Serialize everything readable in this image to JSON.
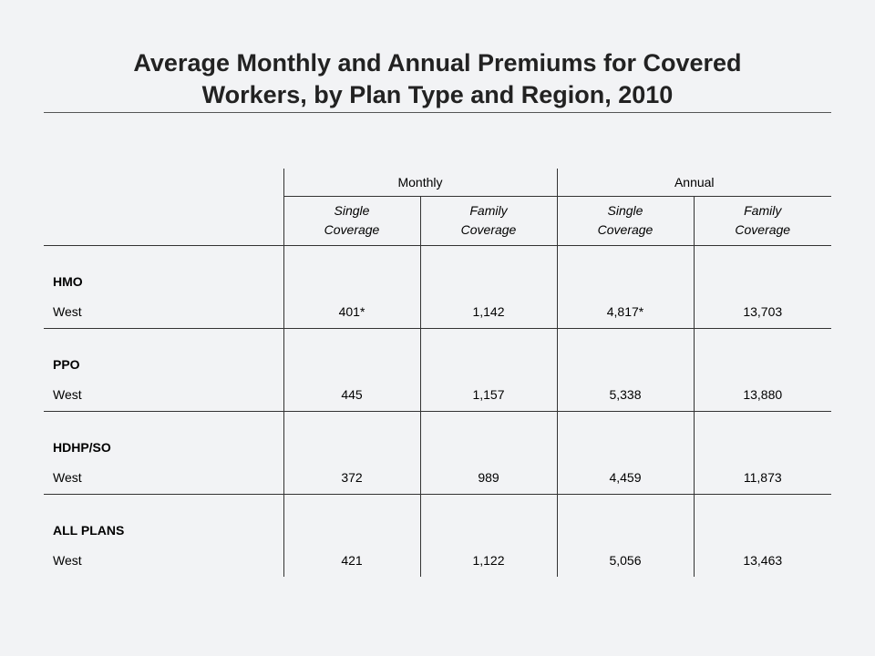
{
  "title_line1": "Average Monthly and Annual Premiums for Covered",
  "title_line2": "Workers, by Plan Type and Region, 2010",
  "chart_data": {
    "type": "table",
    "column_groups": [
      "Monthly",
      "Annual"
    ],
    "columns": [
      "Single Coverage",
      "Family Coverage",
      "Single Coverage",
      "Family Coverage"
    ],
    "rows": [
      {
        "group": "HMO",
        "label": "West",
        "values": [
          "401*",
          "1,142",
          "4,817*",
          "13,703"
        ]
      },
      {
        "group": "PPO",
        "label": "West",
        "values": [
          "445",
          "1,157",
          "5,338",
          "13,880"
        ]
      },
      {
        "group": "HDHP/SO",
        "label": "West",
        "values": [
          "372",
          "989",
          "4,459",
          "11,873"
        ]
      },
      {
        "group": "ALL PLANS",
        "label": "West",
        "values": [
          "421",
          "1,122",
          "5,056",
          "13,463"
        ]
      }
    ]
  },
  "header": {
    "group_monthly": "Monthly",
    "group_annual": "Annual",
    "sub": [
      [
        "Single",
        "Coverage"
      ],
      [
        "Family",
        "Coverage"
      ],
      [
        "Single",
        "Coverage"
      ],
      [
        "Family",
        "Coverage"
      ]
    ]
  }
}
